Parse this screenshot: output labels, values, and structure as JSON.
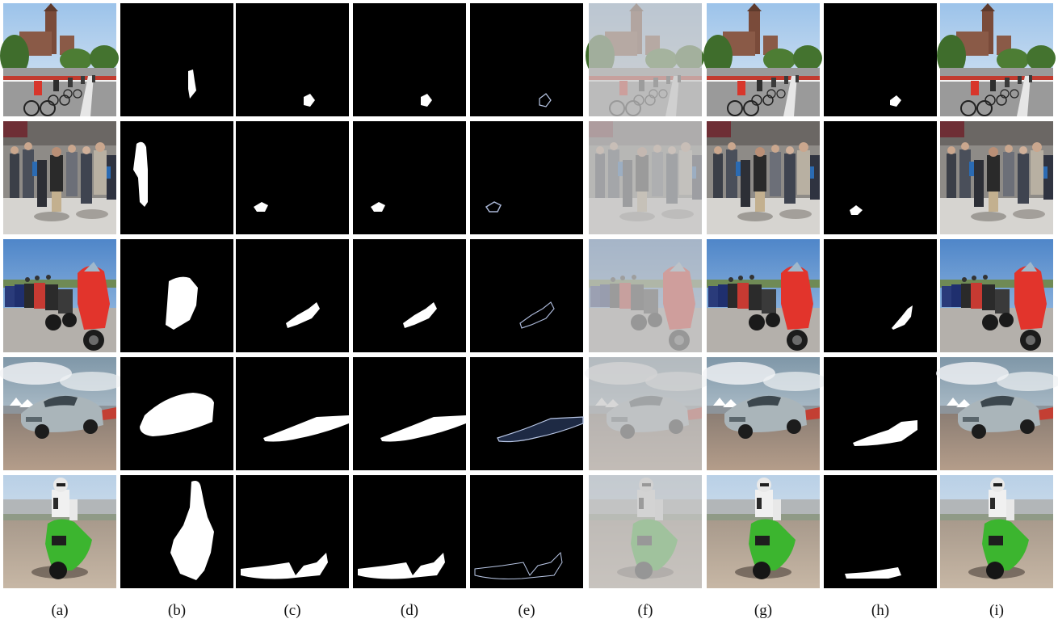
{
  "figure": {
    "column_labels": [
      "(a)",
      "(b)",
      "(c)",
      "(d)",
      "(e)",
      "(f)",
      "(g)",
      "(h)",
      "(i)"
    ],
    "rows": [
      {
        "scene": "cyclists-near-castle"
      },
      {
        "scene": "pedestrian-crowd"
      },
      {
        "scene": "parked-motorcycles"
      },
      {
        "scene": "sports-car-on-track"
      },
      {
        "scene": "motorcyclist-on-track"
      }
    ],
    "colors": {
      "background": "#ffffff",
      "mask_background": "#000000",
      "mask_foreground": "#ffffff",
      "faded_overlay": "#c8c8c8"
    }
  }
}
